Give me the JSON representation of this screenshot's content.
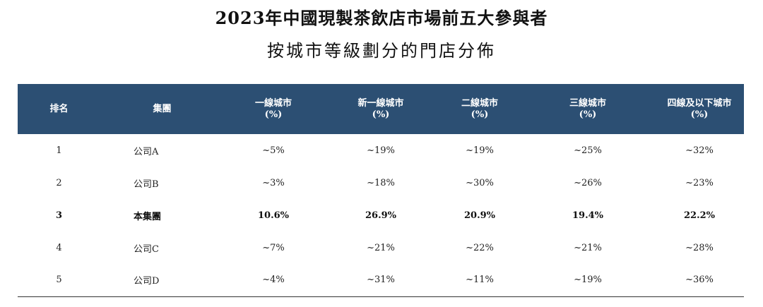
{
  "title_line1": "2023年中國現製茶飲店市場前五大參與者",
  "title_line2": "按城市等級劃分的門店分佈",
  "header_color": "#2c4f73",
  "columns": [
    {
      "label": "排名",
      "unit": ""
    },
    {
      "label": "集團",
      "unit": ""
    },
    {
      "label": "一線城市",
      "unit": "(%)"
    },
    {
      "label": "新一線城市",
      "unit": "(%)"
    },
    {
      "label": "二線城市",
      "unit": "(%)"
    },
    {
      "label": "三線城市",
      "unit": "(%)"
    },
    {
      "label": "四線及以下城市",
      "unit": "(%)"
    }
  ],
  "rows": [
    {
      "rank": "1",
      "company": "公司A",
      "tier1": "~5%",
      "new_tier1": "~19%",
      "tier2": "~19%",
      "tier3": "~25%",
      "tier4_below": "~32%"
    },
    {
      "rank": "2",
      "company": "公司B",
      "tier1": "~3%",
      "new_tier1": "~18%",
      "tier2": "~30%",
      "tier3": "~26%",
      "tier4_below": "~23%"
    },
    {
      "rank": "3",
      "company": "本集團",
      "tier1": "10.6%",
      "new_tier1": "26.9%",
      "tier2": "20.9%",
      "tier3": "19.4%",
      "tier4_below": "22.2%"
    },
    {
      "rank": "4",
      "company": "公司C",
      "tier1": "~7%",
      "new_tier1": "~21%",
      "tier2": "~22%",
      "tier3": "~21%",
      "tier4_below": "~28%"
    },
    {
      "rank": "5",
      "company": "公司D",
      "tier1": "~4%",
      "new_tier1": "~31%",
      "tier2": "~11%",
      "tier3": "~19%",
      "tier4_below": "~36%"
    }
  ]
}
